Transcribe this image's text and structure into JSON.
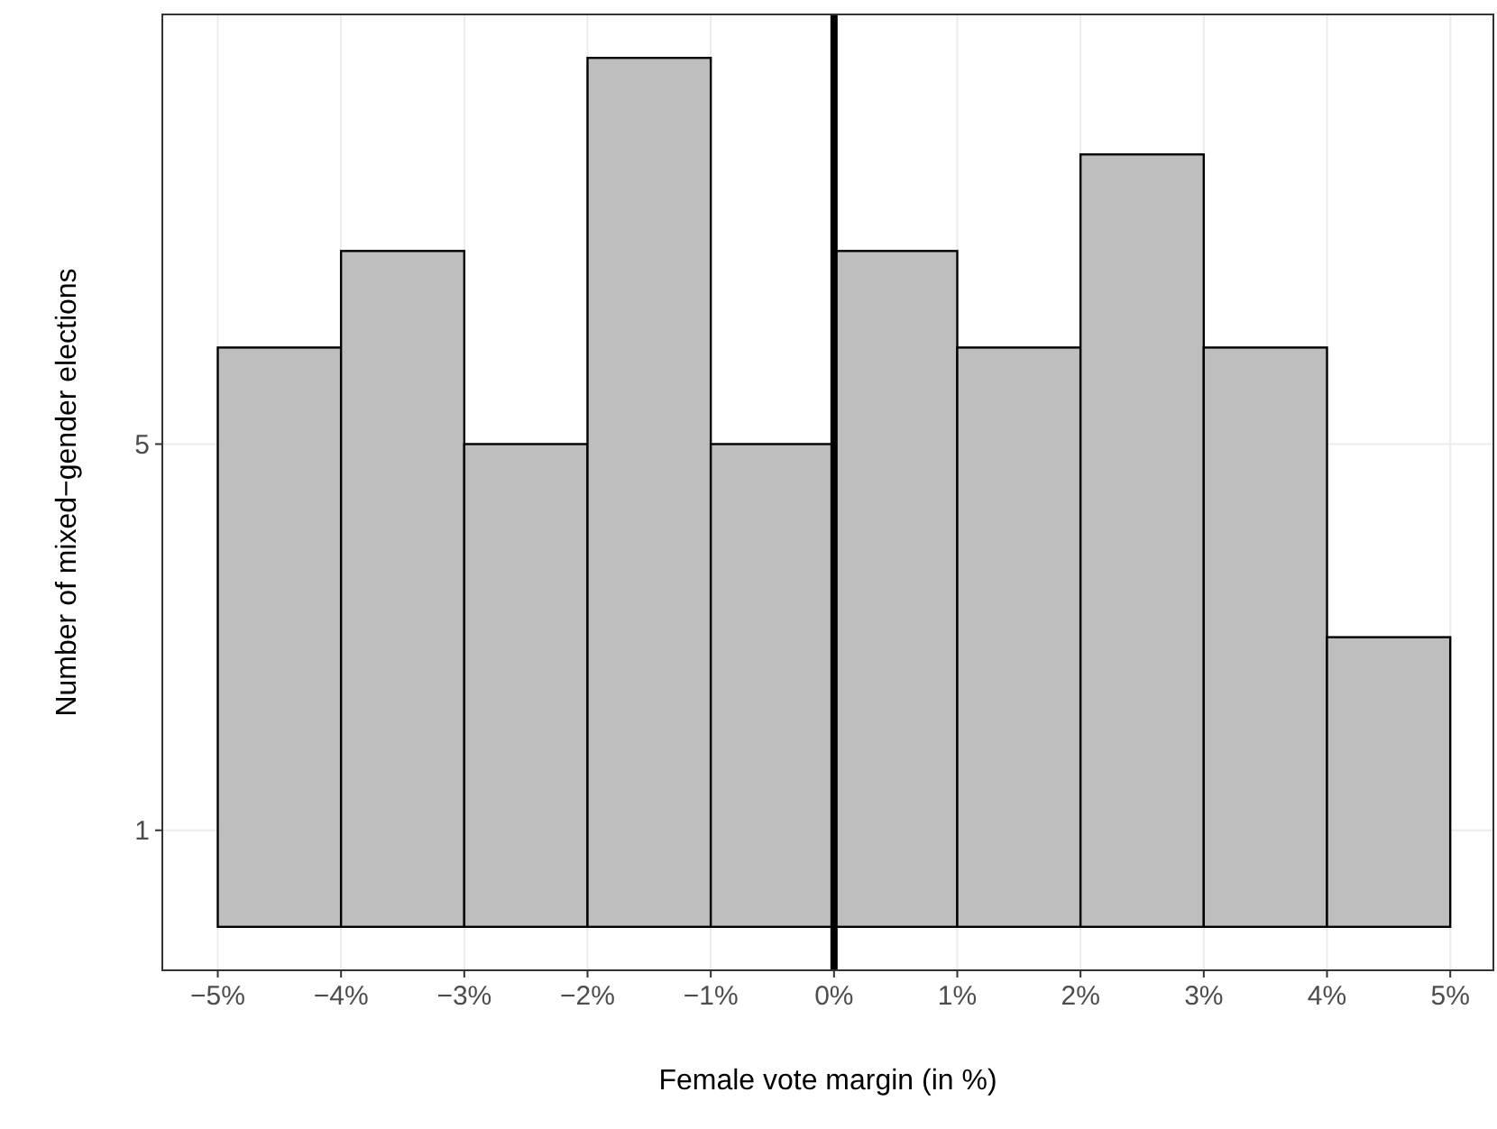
{
  "chart_data": {
    "type": "histogram",
    "xlabel": "Female vote margin (in %)",
    "ylabel": "Number of mixed−gender elections",
    "bins": [
      -5,
      -4,
      -3,
      -2,
      -1,
      0,
      1,
      2,
      3,
      4,
      5
    ],
    "values": [
      6,
      7,
      5,
      9,
      5,
      7,
      6,
      8,
      6,
      3
    ],
    "color": "#bebebe",
    "xlim": [
      -5.45,
      5.35
    ],
    "ylim": [
      -0.45,
      9.45
    ],
    "xticks": [
      {
        "value": -5,
        "label": "−5%"
      },
      {
        "value": -4,
        "label": "−4%"
      },
      {
        "value": -3,
        "label": "−3%"
      },
      {
        "value": -2,
        "label": "−2%"
      },
      {
        "value": -1,
        "label": "−1%"
      },
      {
        "value": 0,
        "label": "0%"
      },
      {
        "value": 1,
        "label": "1%"
      },
      {
        "value": 2,
        "label": "2%"
      },
      {
        "value": 3,
        "label": "3%"
      },
      {
        "value": 4,
        "label": "4%"
      },
      {
        "value": 5,
        "label": "5%"
      }
    ],
    "yticks": [
      1,
      5
    ],
    "ref_lines": [
      {
        "axis": "x",
        "value": 0,
        "color": "#000000"
      }
    ],
    "grid": true
  }
}
